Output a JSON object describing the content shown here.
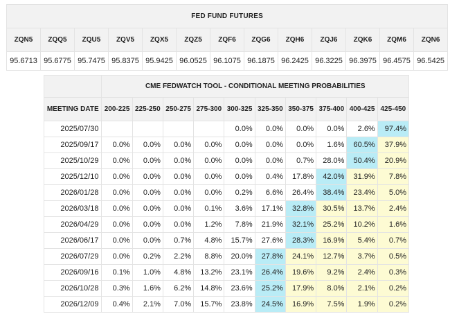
{
  "colors": {
    "max_cell": "#b9ecf6",
    "above_max_cell": "#fdfbd3",
    "header_bg": "#f2f2f2"
  },
  "futures": {
    "title": "FED FUND FUTURES",
    "contracts": [
      "ZQN5",
      "ZQQ5",
      "ZQU5",
      "ZQV5",
      "ZQX5",
      "ZQZ5",
      "ZQF6",
      "ZQG6",
      "ZQH6",
      "ZQJ6",
      "ZQK6",
      "ZQM6",
      "ZQN6"
    ],
    "prices": [
      "95.6713",
      "95.6775",
      "95.7475",
      "95.8375",
      "95.9425",
      "96.0525",
      "96.1075",
      "96.1875",
      "96.2425",
      "96.3225",
      "96.3975",
      "96.4575",
      "96.5425"
    ]
  },
  "fedwatch": {
    "title": "CME FEDWATCH TOOL - CONDITIONAL MEETING PROBABILITIES",
    "meeting_date_label": "MEETING DATE",
    "ranges": [
      "200-225",
      "225-250",
      "250-275",
      "275-300",
      "300-325",
      "325-350",
      "350-375",
      "375-400",
      "400-425",
      "425-450"
    ],
    "rows": [
      {
        "date": "2025/07/30",
        "values": [
          "",
          "",
          "",
          "",
          "0.0%",
          "0.0%",
          "0.0%",
          "0.0%",
          "2.6%",
          "97.4%"
        ]
      },
      {
        "date": "2025/09/17",
        "values": [
          "0.0%",
          "0.0%",
          "0.0%",
          "0.0%",
          "0.0%",
          "0.0%",
          "0.0%",
          "1.6%",
          "60.5%",
          "37.9%"
        ]
      },
      {
        "date": "2025/10/29",
        "values": [
          "0.0%",
          "0.0%",
          "0.0%",
          "0.0%",
          "0.0%",
          "0.0%",
          "0.7%",
          "28.0%",
          "50.4%",
          "20.9%"
        ]
      },
      {
        "date": "2025/12/10",
        "values": [
          "0.0%",
          "0.0%",
          "0.0%",
          "0.0%",
          "0.0%",
          "0.4%",
          "17.8%",
          "42.0%",
          "31.9%",
          "7.8%"
        ]
      },
      {
        "date": "2026/01/28",
        "values": [
          "0.0%",
          "0.0%",
          "0.0%",
          "0.0%",
          "0.2%",
          "6.6%",
          "26.4%",
          "38.4%",
          "23.4%",
          "5.0%"
        ]
      },
      {
        "date": "2026/03/18",
        "values": [
          "0.0%",
          "0.0%",
          "0.0%",
          "0.1%",
          "3.6%",
          "17.1%",
          "32.8%",
          "30.5%",
          "13.7%",
          "2.4%"
        ]
      },
      {
        "date": "2026/04/29",
        "values": [
          "0.0%",
          "0.0%",
          "0.0%",
          "1.2%",
          "7.8%",
          "21.9%",
          "32.1%",
          "25.2%",
          "10.2%",
          "1.6%"
        ]
      },
      {
        "date": "2026/06/17",
        "values": [
          "0.0%",
          "0.0%",
          "0.7%",
          "4.8%",
          "15.7%",
          "27.6%",
          "28.3%",
          "16.9%",
          "5.4%",
          "0.7%"
        ]
      },
      {
        "date": "2026/07/29",
        "values": [
          "0.0%",
          "0.2%",
          "2.2%",
          "8.8%",
          "20.0%",
          "27.8%",
          "24.1%",
          "12.7%",
          "3.7%",
          "0.5%"
        ]
      },
      {
        "date": "2026/09/16",
        "values": [
          "0.1%",
          "1.0%",
          "4.8%",
          "13.2%",
          "23.1%",
          "26.4%",
          "19.6%",
          "9.2%",
          "2.4%",
          "0.3%"
        ]
      },
      {
        "date": "2026/10/28",
        "values": [
          "0.3%",
          "1.6%",
          "6.2%",
          "14.8%",
          "23.6%",
          "25.2%",
          "17.9%",
          "8.0%",
          "2.1%",
          "0.2%"
        ]
      },
      {
        "date": "2026/12/09",
        "values": [
          "0.4%",
          "2.1%",
          "7.0%",
          "15.7%",
          "23.8%",
          "24.5%",
          "16.9%",
          "7.5%",
          "1.9%",
          "0.2%"
        ]
      }
    ]
  }
}
